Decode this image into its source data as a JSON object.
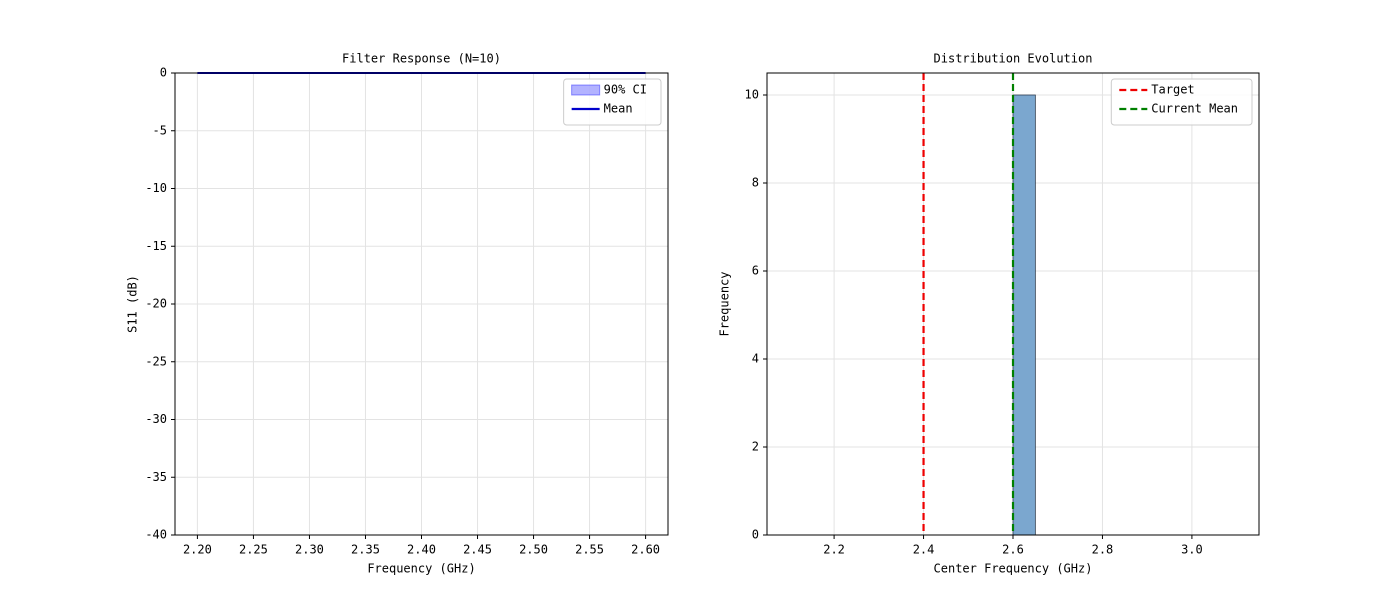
{
  "chart_data": [
    {
      "type": "line",
      "title": "Filter Response (N=10)",
      "xlabel": "Frequency (GHz)",
      "ylabel": "S11 (dB)",
      "x": [
        2.2,
        2.25,
        2.3,
        2.35,
        2.4,
        2.45,
        2.5,
        2.55,
        2.6
      ],
      "band": {
        "name": "90% CI",
        "color": "#0000ff",
        "lower": [
          0,
          0,
          0,
          0,
          0,
          0,
          0,
          0,
          0
        ],
        "upper": [
          0,
          0,
          0,
          0,
          0,
          0,
          0,
          0,
          0
        ]
      },
      "series": [
        {
          "name": "Mean",
          "color": "#0000cc",
          "values": [
            0,
            0,
            0,
            0,
            0,
            0,
            0,
            0,
            0
          ]
        }
      ],
      "xlim": [
        2.18,
        2.62
      ],
      "xticks": [
        {
          "value": 2.2,
          "label": "2.20"
        },
        {
          "value": 2.25,
          "label": "2.25"
        },
        {
          "value": 2.3,
          "label": "2.30"
        },
        {
          "value": 2.35,
          "label": "2.35"
        },
        {
          "value": 2.4,
          "label": "2.40"
        },
        {
          "value": 2.45,
          "label": "2.45"
        },
        {
          "value": 2.5,
          "label": "2.50"
        },
        {
          "value": 2.55,
          "label": "2.55"
        },
        {
          "value": 2.6,
          "label": "2.60"
        }
      ],
      "ylim": [
        -40,
        0
      ],
      "yticks": [
        -40,
        -35,
        -30,
        -25,
        -20,
        -15,
        -10,
        -5,
        0
      ],
      "grid": true,
      "legend": "upper right"
    },
    {
      "type": "histogram",
      "title": "Distribution Evolution",
      "xlabel": "Center Frequency (GHz)",
      "ylabel": "Frequency",
      "bins": [
        2.1,
        2.15,
        2.2,
        2.25,
        2.3,
        2.35,
        2.4,
        2.45,
        2.5,
        2.55,
        2.6,
        2.65,
        2.7,
        2.75,
        2.8,
        2.85,
        2.9,
        2.95,
        3.0,
        3.05,
        3.1
      ],
      "counts": [
        0,
        0,
        0,
        0,
        0,
        0,
        0,
        0,
        0,
        0,
        10,
        0,
        0,
        0,
        0,
        0,
        0,
        0,
        0,
        0
      ],
      "color": "#7ba7cf",
      "vlines": [
        {
          "name": "Target",
          "value": 2.4,
          "color": "#ee0000"
        },
        {
          "name": "Current Mean",
          "value": 2.6,
          "color": "#008000"
        }
      ],
      "xlim": [
        2.05,
        3.15
      ],
      "xticks": [
        2.2,
        2.4,
        2.6,
        2.8,
        {
          "value": 3.0,
          "label": "3.0"
        }
      ],
      "ylim": [
        0,
        10.5
      ],
      "yticks": [
        0,
        2,
        4,
        6,
        8,
        10
      ],
      "grid": true,
      "legend": "upper right"
    }
  ]
}
